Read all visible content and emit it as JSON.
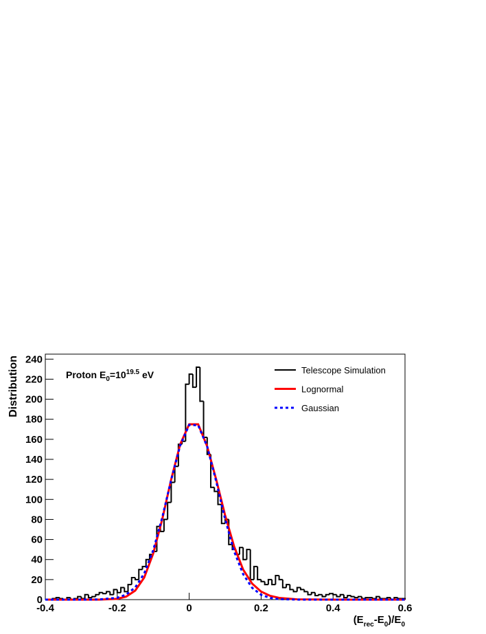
{
  "chart_data": {
    "type": "histogram",
    "name": "Telescope Simulation",
    "color": "#000000",
    "bins": [
      -0.4,
      -0.39,
      -0.38,
      -0.37,
      -0.36,
      -0.35,
      -0.34,
      -0.33,
      -0.32,
      -0.31,
      -0.3,
      -0.29,
      -0.28,
      -0.27,
      -0.26,
      -0.25,
      -0.24,
      -0.23,
      -0.22,
      -0.21,
      -0.2,
      -0.19,
      -0.18,
      -0.17,
      -0.16,
      -0.15,
      -0.14,
      -0.13,
      -0.12,
      -0.11,
      -0.1,
      -0.09,
      -0.08,
      -0.07,
      -0.06,
      -0.05,
      -0.04,
      -0.03,
      -0.02,
      -0.01,
      0,
      0.01,
      0.02,
      0.03,
      0.04,
      0.05,
      0.06,
      0.07,
      0.08,
      0.09,
      0.1,
      0.11,
      0.12,
      0.13,
      0.14,
      0.15,
      0.16,
      0.17,
      0.18,
      0.19,
      0.2,
      0.21,
      0.22,
      0.23,
      0.24,
      0.25,
      0.26,
      0.27,
      0.28,
      0.29,
      0.3,
      0.31,
      0.32,
      0.33,
      0.34,
      0.35,
      0.36,
      0.37,
      0.38,
      0.39,
      0.4,
      0.41,
      0.42,
      0.43,
      0.44,
      0.45,
      0.46,
      0.47,
      0.48,
      0.49,
      0.5,
      0.51,
      0.52,
      0.53,
      0.54,
      0.55,
      0.56,
      0.57,
      0.58,
      0.59,
      0.6
    ],
    "values": [
      0,
      0,
      1,
      2,
      1,
      0,
      2,
      0,
      1,
      3,
      1,
      5,
      2,
      3,
      5,
      7,
      6,
      8,
      5,
      10,
      7,
      12,
      8,
      15,
      22,
      20,
      30,
      33,
      40,
      45,
      48,
      73,
      68,
      80,
      97,
      117,
      133,
      155,
      158,
      215,
      225,
      212,
      232,
      198,
      162,
      145,
      112,
      108,
      95,
      76,
      80,
      55,
      50,
      45,
      52,
      40,
      50,
      20,
      33,
      20,
      18,
      15,
      20,
      15,
      24,
      20,
      12,
      15,
      10,
      8,
      12,
      10,
      8,
      5,
      7,
      4,
      5,
      3,
      5,
      6,
      5,
      3,
      5,
      2,
      4,
      3,
      2,
      3,
      1,
      2,
      2,
      1,
      3,
      1,
      1,
      2,
      0,
      2,
      1,
      1
    ],
    "series": [
      {
        "name": "Lognormal",
        "color": "#ff0000",
        "dashed": false,
        "x": [
          -0.4,
          -0.3,
          -0.25,
          -0.2,
          -0.175,
          -0.15,
          -0.125,
          -0.1,
          -0.075,
          -0.05,
          -0.025,
          0,
          0.025,
          0.05,
          0.075,
          0.1,
          0.125,
          0.15,
          0.175,
          0.2,
          0.225,
          0.25,
          0.3,
          0.4,
          0.6
        ],
        "values": [
          0,
          0,
          0,
          0.8,
          3,
          9,
          22,
          46,
          80,
          120,
          155,
          175,
          175,
          153,
          120,
          84,
          53,
          30,
          16,
          8,
          3.8,
          1.7,
          0.3,
          0,
          0
        ]
      },
      {
        "name": "Gaussian",
        "color": "#0000ff",
        "dashed": true,
        "x": [
          -0.4,
          -0.3,
          -0.25,
          -0.2,
          -0.175,
          -0.15,
          -0.125,
          -0.1,
          -0.075,
          -0.05,
          -0.025,
          0,
          0.025,
          0.05,
          0.075,
          0.1,
          0.125,
          0.15,
          0.175,
          0.2,
          0.225,
          0.25,
          0.3,
          0.4,
          0.6
        ],
        "values": [
          0,
          0,
          0.2,
          1.8,
          5,
          12.2,
          26.1,
          49.2,
          81.8,
          119.6,
          153.9,
          174.4,
          174,
          152.8,
          118.1,
          80.3,
          48.1,
          25.4,
          11.8,
          4.8,
          1.7,
          0.5,
          0,
          0,
          0
        ]
      }
    ],
    "ylabel": "Distribution",
    "xlabel_parts": [
      "(E",
      "rec",
      "-E",
      "0",
      ")/E",
      "0"
    ],
    "annotation_parts": [
      "Proton E",
      "0",
      "=10",
      "19.5",
      " eV"
    ],
    "xlim": [
      -0.4,
      0.6
    ],
    "ylim": [
      0,
      245
    ],
    "xticks": [
      -0.4,
      -0.2,
      0,
      0.2,
      0.4,
      0.6
    ],
    "yticks": [
      0,
      20,
      40,
      60,
      80,
      100,
      120,
      140,
      160,
      180,
      200,
      220,
      240
    ],
    "legend": "upper right"
  }
}
